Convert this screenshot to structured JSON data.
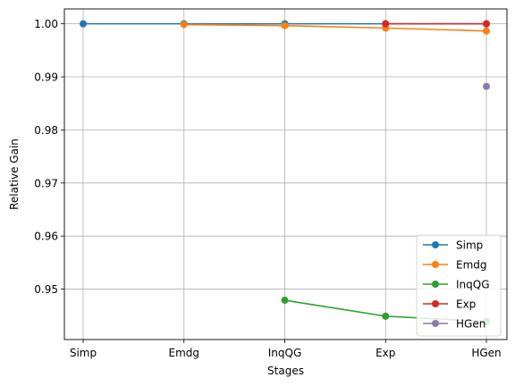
{
  "chart_data": {
    "type": "line",
    "title": "",
    "xlabel": "Stages",
    "ylabel": "Relative Gain",
    "categories": [
      "Simp",
      "Emdg",
      "InqQG",
      "Exp",
      "HGen"
    ],
    "ylim": [
      0.9405,
      1.0028
    ],
    "yticks": [
      0.95,
      0.96,
      0.97,
      0.98,
      0.99,
      1.0
    ],
    "ytick_labels": [
      "0.95",
      "0.96",
      "0.97",
      "0.98",
      "0.99",
      "1.00"
    ],
    "grid": true,
    "legend_position": "bottom-right",
    "series": [
      {
        "name": "Simp",
        "color": "#1f77b4",
        "values": [
          1.0,
          1.0,
          1.0,
          1.0,
          1.0
        ]
      },
      {
        "name": "Emdg",
        "color": "#ff7f0e",
        "values": [
          null,
          0.99985,
          0.99965,
          0.9992,
          0.99865
        ]
      },
      {
        "name": "InqQG",
        "color": "#2ca02c",
        "values": [
          null,
          null,
          0.9479,
          0.9449,
          0.9439
        ]
      },
      {
        "name": "Exp",
        "color": "#d62728",
        "values": [
          null,
          null,
          null,
          1.0,
          1.0
        ]
      },
      {
        "name": "HGen",
        "color": "#8c7aa9",
        "values": [
          null,
          null,
          null,
          null,
          0.9882
        ]
      }
    ]
  }
}
